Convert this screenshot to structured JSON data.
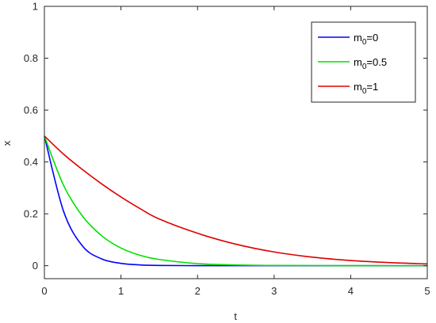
{
  "chart_data": {
    "type": "line",
    "title": "",
    "xlabel": "t",
    "ylabel": "x",
    "xlim": [
      0,
      5
    ],
    "ylim": [
      -0.05,
      1
    ],
    "xticks": [
      0,
      1,
      2,
      3,
      4,
      5
    ],
    "xtick_labels": [
      "0",
      "1",
      "2",
      "3",
      "4",
      "5"
    ],
    "yticks": [
      0,
      0.2,
      0.4,
      0.6,
      0.8,
      1
    ],
    "ytick_labels": [
      "0",
      "0.2",
      "0.4",
      "0.6",
      "0.8",
      "1"
    ],
    "grid": false,
    "legend_position": "top-right",
    "x": [
      0,
      0.25,
      0.5,
      0.75,
      1,
      1.25,
      1.5,
      2,
      2.5,
      3,
      3.5,
      4,
      4.5,
      5
    ],
    "series": [
      {
        "legend_base": "m",
        "legend_sub": "0",
        "legend_tail": "=0",
        "color": "#0000ff",
        "values": [
          0.5,
          0.21,
          0.075,
          0.026,
          0.009,
          0.003,
          0.001,
          0.0002,
          0,
          0,
          0,
          0,
          0,
          0
        ]
      },
      {
        "legend_base": "m",
        "legend_sub": "0",
        "legend_tail": "=0.5",
        "color": "#00e000",
        "values": [
          0.5,
          0.31,
          0.19,
          0.115,
          0.068,
          0.04,
          0.024,
          0.008,
          0.003,
          0.001,
          0.0004,
          0.0001,
          0,
          0
        ]
      },
      {
        "legend_base": "m",
        "legend_sub": "0",
        "legend_tail": "=1",
        "color": "#e00000",
        "values": [
          0.5,
          0.43,
          0.37,
          0.315,
          0.265,
          0.22,
          0.18,
          0.125,
          0.083,
          0.053,
          0.033,
          0.02,
          0.012,
          0.007
        ]
      }
    ]
  }
}
